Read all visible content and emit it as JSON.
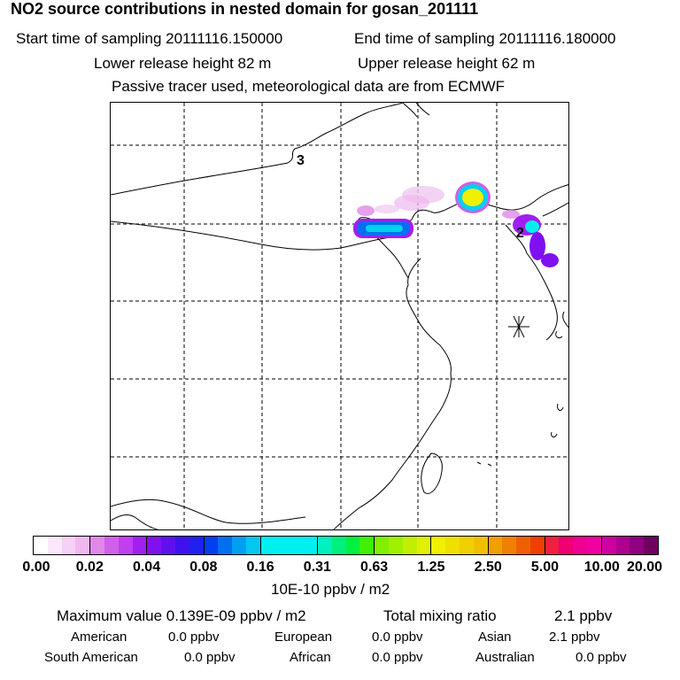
{
  "title": "NO2 source contributions in nested domain for gosan_201111",
  "sampling": {
    "start": "Start time of sampling 20111116.150000",
    "end": "End time of sampling 20111116.180000"
  },
  "release": {
    "lower": "Lower release height   82 m",
    "upper": "Upper release height   62 m"
  },
  "note": "Passive tracer used, meteorological data are from ECMWF",
  "map": {
    "labels": [
      "3",
      "2"
    ],
    "station_icon": "asterisk-station-icon"
  },
  "colorbar": {
    "ticks": [
      "0.00",
      "0.02",
      "0.04",
      "0.08",
      "0.16",
      "0.31",
      "0.63",
      "1.25",
      "2.50",
      "5.00",
      "10.00",
      "20.00"
    ],
    "unit": "10E-10 ppbv / m2",
    "colors": [
      [
        "#ffffff",
        "#fbe8fb",
        "#f6d0f6",
        "#f0b8f0"
      ],
      [
        "#e088e8",
        "#d060e8",
        "#c040f0",
        "#a020f0"
      ],
      [
        "#8010f0",
        "#6010f0",
        "#4010f0",
        "#2020f0"
      ],
      [
        "#0040f0",
        "#0070f0",
        "#00a0f0",
        "#00c8f0"
      ],
      [
        "#00f0f0",
        "#00f0f0",
        "#00f0f0",
        "#00f0f0"
      ],
      [
        "#00f0c0",
        "#00f080",
        "#00f040",
        "#40f000"
      ],
      [
        "#80f000",
        "#a0f000",
        "#c0f000",
        "#e0f000"
      ],
      [
        "#f0f000",
        "#f0e000",
        "#f0d000",
        "#f0c000"
      ],
      [
        "#f0a000",
        "#f08000",
        "#f06000",
        "#f04000"
      ],
      [
        "#f02040",
        "#f00070",
        "#f00090",
        "#f000a0"
      ],
      [
        "#d000a0",
        "#b00090",
        "#900080",
        "#700060"
      ]
    ]
  },
  "stats": {
    "max_label": "Maximum value  0.139E-09 ppbv / m2",
    "total_label": "Total mixing ratio",
    "total_value": "2.1 ppbv",
    "regions": [
      {
        "name": "American",
        "value": "0.0 ppbv"
      },
      {
        "name": "European",
        "value": "0.0 ppbv"
      },
      {
        "name": "Asian",
        "value": "2.1 ppbv"
      },
      {
        "name": "South American",
        "value": "0.0 ppbv"
      },
      {
        "name": "African",
        "value": "0.0 ppbv"
      },
      {
        "name": "Australian",
        "value": "0.0 ppbv"
      }
    ]
  }
}
